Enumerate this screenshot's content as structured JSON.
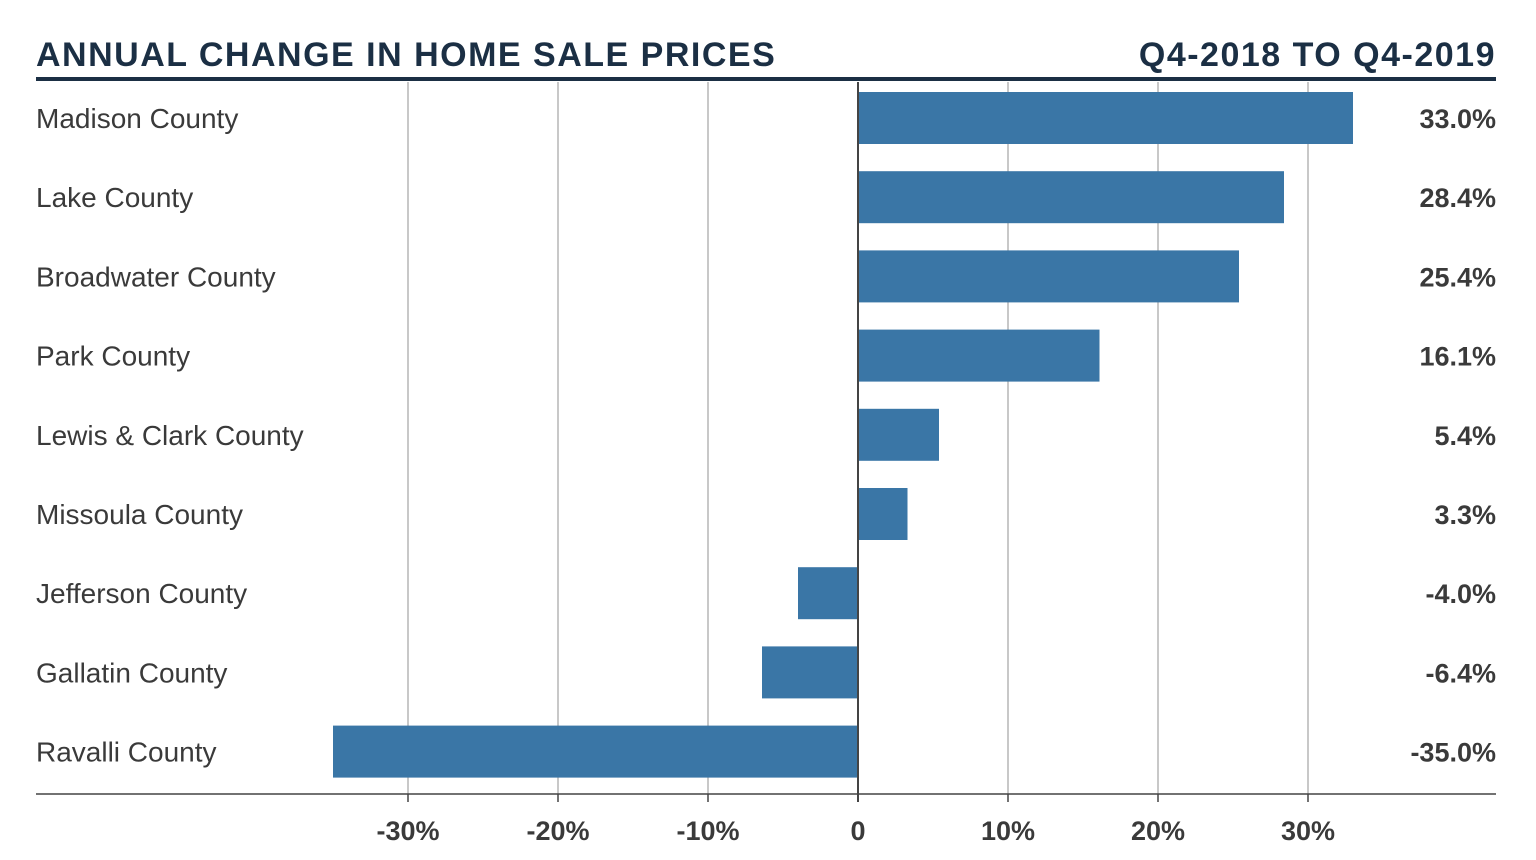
{
  "header": {
    "title": "ANNUAL CHANGE IN HOME SALE PRICES",
    "period": "Q4-2018 TO Q4-2019"
  },
  "colors": {
    "bar": "#3a76a6",
    "title": "#1b2f44",
    "grid": "#b5b5b5",
    "zero_line": "#444444",
    "text": "#3a3a3a"
  },
  "chart_data": {
    "type": "bar",
    "orientation": "horizontal",
    "title": "ANNUAL CHANGE IN HOME SALE PRICES",
    "subtitle": "Q4-2018 TO Q4-2019",
    "categories": [
      "Madison County",
      "Lake County",
      "Broadwater County",
      "Park County",
      "Lewis & Clark County",
      "Missoula County",
      "Jefferson County",
      "Gallatin County",
      "Ravalli County"
    ],
    "values": [
      33.0,
      28.4,
      25.4,
      16.1,
      5.4,
      3.3,
      -4.0,
      -6.4,
      -35.0
    ],
    "value_labels": [
      "33.0%",
      "28.4%",
      "25.4%",
      "16.1%",
      "5.4%",
      "3.3%",
      "-4.0%",
      "-6.4%",
      "-35.0%"
    ],
    "xlim": [
      -40,
      40
    ],
    "ticks": [
      -30,
      -20,
      -10,
      0,
      10,
      20,
      30
    ],
    "tick_labels": [
      "-30%",
      "-20%",
      "-10%",
      "0",
      "10%",
      "20%",
      "30%"
    ],
    "grid": true,
    "legend": "none"
  }
}
